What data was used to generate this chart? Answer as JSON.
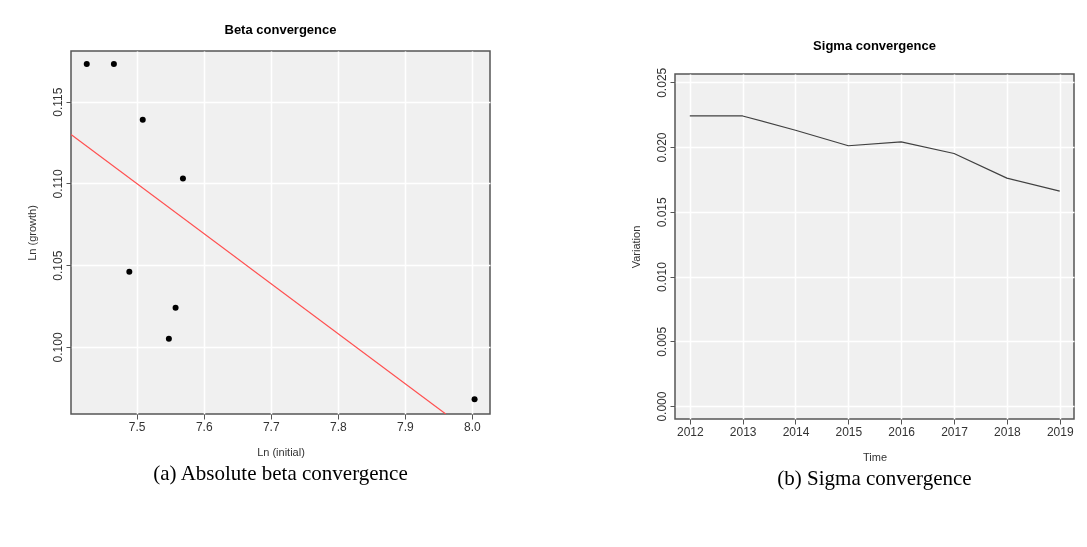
{
  "chart_data": [
    {
      "type": "scatter",
      "title": "Beta convergence",
      "xlabel": "Ln (initial)",
      "ylabel": "Ln (growth)",
      "annotations": [
        "(a) Absolute beta convergence"
      ],
      "grid": true,
      "series": [
        {
          "color": "#000000",
          "marker": "circle",
          "x": [
            7.4255,
            7.466,
            7.509,
            7.569,
            7.489,
            7.558,
            7.548,
            8.004
          ],
          "values": [
            0.1173,
            0.1173,
            0.1139,
            0.1103,
            0.1046,
            0.1024,
            0.1005,
            0.0968
          ]
        },
        {
          "type": "line",
          "color": "#ff5050",
          "x": [
            7.402,
            7.961
          ],
          "values": [
            0.113,
            0.0959
          ]
        }
      ],
      "xlim": [
        7.402,
        8.027
      ],
      "xticks": [
        7.5,
        7.6,
        7.7,
        7.8,
        7.9,
        {
          "value": 8,
          "label": "8.0"
        }
      ],
      "ylim": [
        0.0959,
        0.1181
      ],
      "yticks": [
        {
          "value": 0.1,
          "label": "0.100"
        },
        0.105,
        {
          "value": 0.11,
          "label": "0.110"
        },
        0.115
      ]
    },
    {
      "type": "line",
      "title": "Sigma convergence",
      "xlabel": "Time",
      "ylabel": "Variation",
      "annotations": [
        "(b) Sigma convergence"
      ],
      "grid": true,
      "series": [
        {
          "color": "#404040",
          "x": [
            2012,
            2013,
            2014,
            2015,
            2016,
            2017,
            2018,
            2019
          ],
          "values": [
            0.0224,
            0.0224,
            0.0213,
            0.0201,
            0.0204,
            0.0195,
            0.0176,
            0.0166
          ]
        }
      ],
      "xlim": [
        2011.72,
        2019.27
      ],
      "xticks": [
        2012,
        2013,
        2014,
        2015,
        2016,
        2017,
        2018,
        2019
      ],
      "ylim": [
        -0.001,
        0.02564
      ],
      "yticks": [
        {
          "value": 0,
          "label": "0.000"
        },
        0.005,
        {
          "value": 0.01,
          "label": "0.010"
        },
        0.015,
        {
          "value": 0.02,
          "label": "0.020"
        },
        0.025
      ]
    }
  ]
}
